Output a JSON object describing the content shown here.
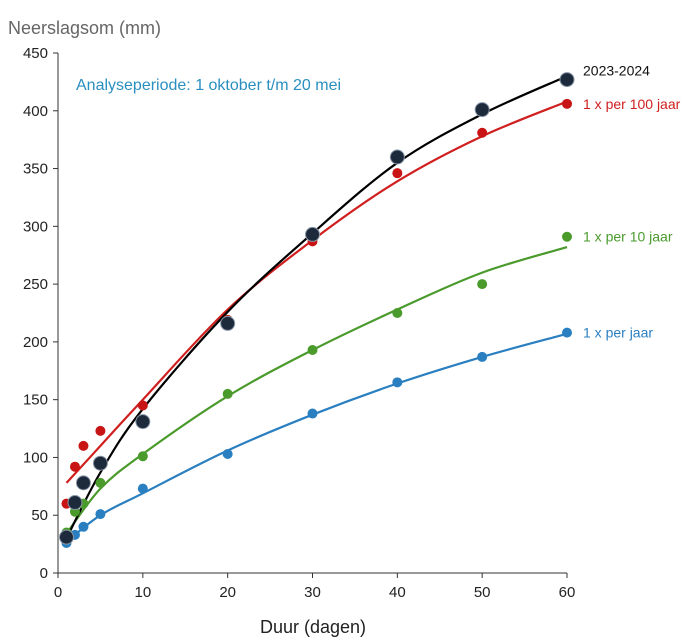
{
  "chart_data": {
    "type": "scatter",
    "title": "",
    "xlabel": "Duur (dagen)",
    "ylabel": "Neerslagsom (mm)",
    "annotation": "Analyseperiode: 1 oktober t/m 20 mei",
    "annotation_color": "#2a8fc0",
    "xlim": [
      0,
      60
    ],
    "ylim": [
      0,
      450
    ],
    "xticks": [
      0,
      10,
      20,
      30,
      40,
      50,
      60
    ],
    "yticks": [
      0,
      50,
      100,
      150,
      200,
      250,
      300,
      350,
      400,
      450
    ],
    "grid": false,
    "legend": "right",
    "series": [
      {
        "name": "2023-2024",
        "color": "#000000",
        "marker_color": "#1c2a3c",
        "x": [
          1,
          2,
          3,
          5,
          10,
          20,
          30,
          40,
          50,
          60
        ],
        "y": [
          31,
          61,
          78,
          95,
          131,
          216,
          293,
          360,
          401,
          427
        ],
        "trend": [
          [
            1,
            30
          ],
          [
            5,
            87
          ],
          [
            10,
            142
          ],
          [
            20,
            226
          ],
          [
            30,
            294
          ],
          [
            40,
            355
          ],
          [
            50,
            397
          ],
          [
            60,
            430
          ]
        ]
      },
      {
        "name": "1 x per 100 jaar",
        "color": "#d01f1f",
        "marker_color": "#c81414",
        "x": [
          1,
          2,
          3,
          5,
          10,
          20,
          30,
          40,
          50,
          60
        ],
        "y": [
          60,
          92,
          110,
          123,
          145,
          219,
          287,
          346,
          381,
          406
        ],
        "trend": [
          [
            1,
            78
          ],
          [
            5,
            110
          ],
          [
            10,
            150
          ],
          [
            20,
            228
          ],
          [
            30,
            288
          ],
          [
            40,
            339
          ],
          [
            50,
            378
          ],
          [
            60,
            408
          ]
        ]
      },
      {
        "name": "1 x per 10 jaar",
        "color": "#4a9a2c",
        "marker_color": "#4a9a2c",
        "x": [
          1,
          2,
          3,
          5,
          10,
          20,
          30,
          40,
          50,
          60
        ],
        "y": [
          35,
          53,
          60,
          78,
          101,
          155,
          193,
          225,
          250,
          291
        ],
        "trend": [
          [
            1,
            34
          ],
          [
            5,
            73
          ],
          [
            10,
            103
          ],
          [
            20,
            153
          ],
          [
            30,
            193
          ],
          [
            40,
            228
          ],
          [
            50,
            260
          ],
          [
            60,
            282
          ]
        ]
      },
      {
        "name": "1 x per jaar",
        "color": "#2a7fc0",
        "marker_color": "#2a7fc0",
        "x": [
          1,
          2,
          3,
          5,
          10,
          20,
          30,
          40,
          50,
          60
        ],
        "y": [
          26,
          33,
          40,
          51,
          73,
          103,
          138,
          165,
          187,
          208
        ],
        "trend": [
          [
            1,
            27
          ],
          [
            5,
            50
          ],
          [
            10,
            69
          ],
          [
            20,
            106
          ],
          [
            30,
            137
          ],
          [
            40,
            164
          ],
          [
            50,
            187
          ],
          [
            60,
            207
          ]
        ]
      }
    ]
  }
}
